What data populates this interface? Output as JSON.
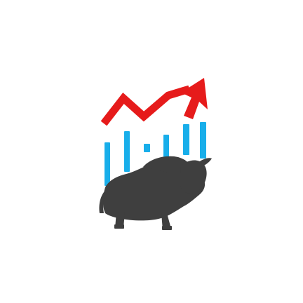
{
  "logo": {
    "concept": "bull-market-growth",
    "colors": {
      "background": "#ffffff",
      "arrow": "#e61b1b",
      "bars": "#18aeea",
      "bull": "#3f3f3f"
    },
    "icons": [
      "trend-up-arrow-icon",
      "bar-chart-icon",
      "bull-icon"
    ]
  }
}
